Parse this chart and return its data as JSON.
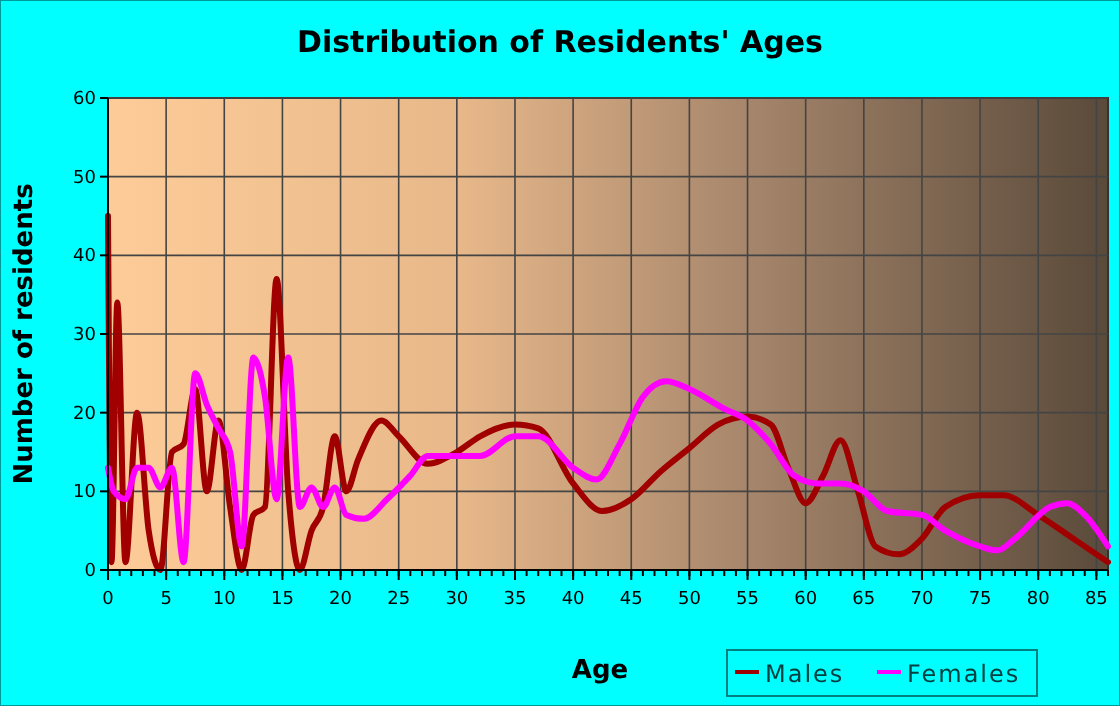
{
  "chart_data": {
    "type": "line",
    "title": "Distribution of Residents' Ages",
    "xlabel": "Age",
    "ylabel": "Number of residents",
    "xlim": [
      0,
      86
    ],
    "xticks": [
      0,
      5,
      10,
      15,
      20,
      25,
      30,
      35,
      40,
      45,
      50,
      55,
      60,
      65,
      70,
      75,
      80,
      85
    ],
    "ylim": [
      0,
      60
    ],
    "yticks": [
      0,
      10,
      20,
      30,
      40,
      50,
      60
    ],
    "grid": true,
    "legend": "bottom right",
    "series": [
      {
        "name": "Males",
        "color": "#a00000",
        "x": [
          0,
          0.3,
          0.8,
          1.5,
          2.5,
          3.5,
          4.5,
          5.5,
          6.5,
          7.5,
          8.5,
          9.5,
          10.5,
          11.5,
          12.5,
          13.5,
          14.5,
          15.5,
          16.5,
          17.5,
          18.5,
          19.5,
          20.5,
          21.5,
          23.5,
          25,
          27.5,
          30,
          32,
          35,
          37,
          40,
          42.5,
          45,
          47.5,
          50,
          52.5,
          55,
          57,
          58.5,
          60,
          61.5,
          63,
          64.5,
          66,
          68,
          70,
          72,
          75,
          77,
          80,
          83,
          86
        ],
        "values": [
          45,
          1,
          34,
          1,
          20,
          5,
          0,
          15,
          16,
          23,
          10,
          19,
          8,
          0,
          7,
          8,
          37,
          10,
          0,
          5,
          8,
          17,
          10,
          14,
          19,
          17,
          13.5,
          15,
          17,
          18.5,
          18,
          11,
          7.5,
          9,
          12.5,
          15.5,
          18.5,
          19.5,
          18.5,
          13,
          8.5,
          12,
          16.5,
          10,
          3,
          2,
          4,
          8,
          9.5,
          9.5,
          7,
          4,
          1
        ]
      },
      {
        "name": "Females",
        "color": "#ff00ff",
        "x": [
          0,
          0.5,
          1.5,
          2.5,
          3.5,
          4.5,
          5.5,
          6.5,
          7.5,
          8.5,
          9.5,
          10.5,
          11.5,
          12.5,
          13.5,
          14.5,
          15.5,
          16.5,
          17.5,
          18.5,
          19.5,
          20.5,
          22,
          24,
          26,
          27.5,
          30,
          32,
          35,
          37,
          40,
          42,
          44,
          46,
          48,
          50,
          53,
          55,
          57,
          59,
          61,
          63,
          65,
          67,
          70,
          72,
          75,
          76.5,
          78,
          81,
          82.5,
          84,
          86
        ],
        "values": [
          13,
          10,
          9,
          13,
          13,
          10.5,
          13,
          1,
          25,
          21,
          18,
          15,
          3,
          27,
          22,
          9,
          27,
          8,
          10.5,
          8,
          10.5,
          7,
          6.5,
          9,
          12,
          14.5,
          14.5,
          14.5,
          17,
          17,
          13,
          11.5,
          16,
          22,
          24,
          23,
          20.5,
          19,
          16,
          12,
          11,
          11,
          10,
          7.5,
          7,
          5,
          3,
          2.5,
          4,
          8,
          8.5,
          7,
          3
        ]
      }
    ]
  }
}
